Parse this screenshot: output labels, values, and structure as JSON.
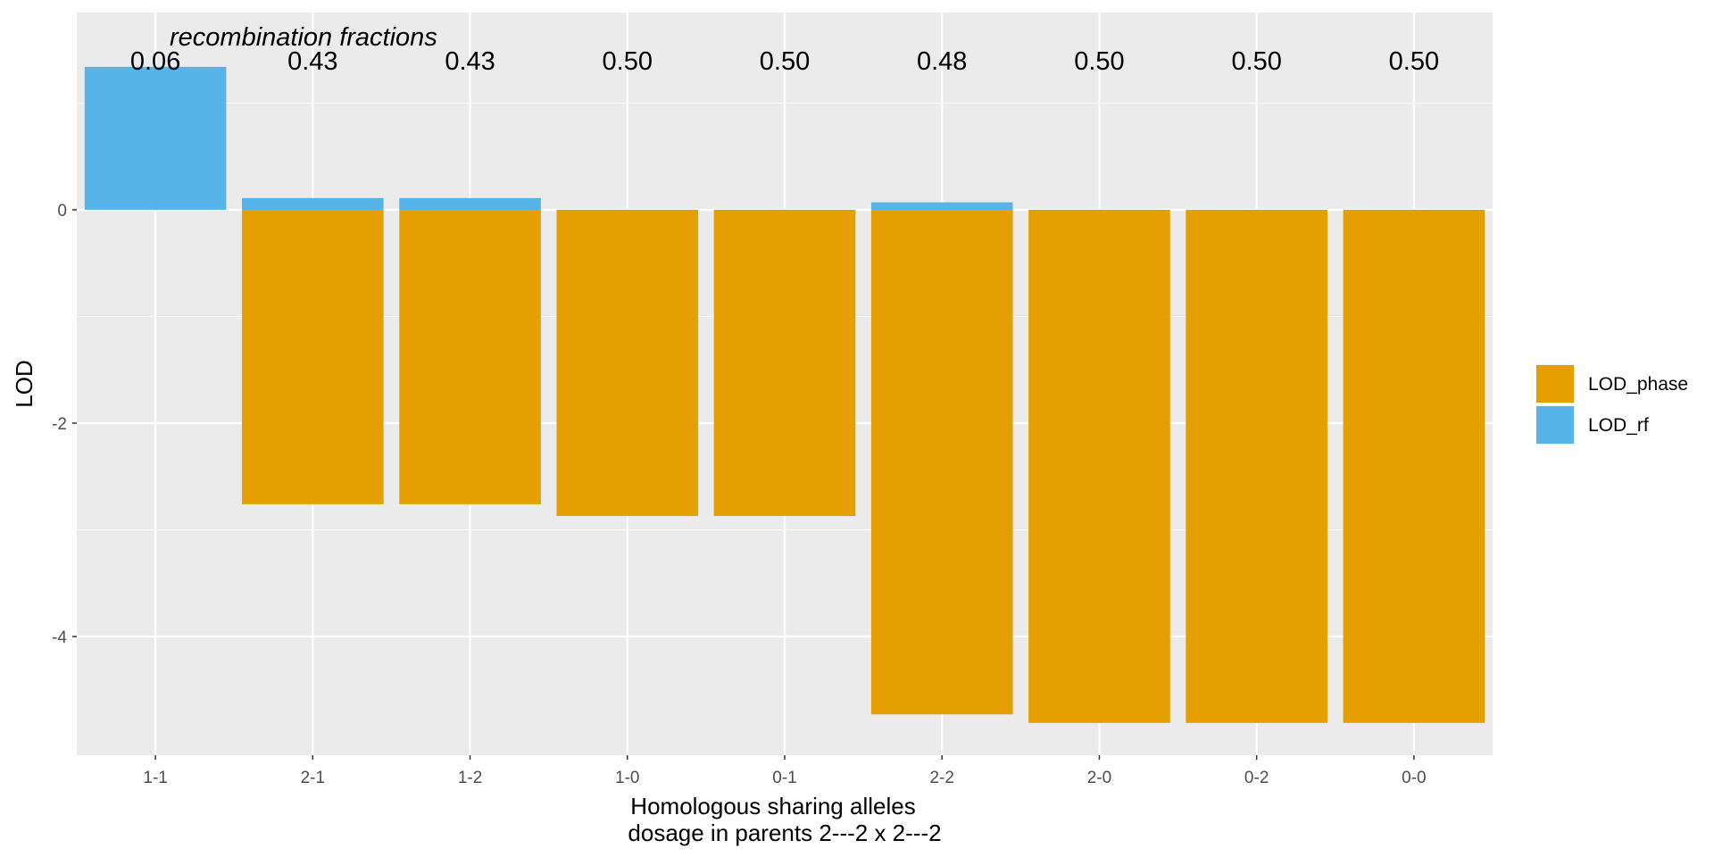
{
  "chart_data": {
    "type": "bar",
    "stacked": true,
    "categories": [
      "1-1",
      "2-1",
      "1-2",
      "1-0",
      "0-1",
      "2-2",
      "2-0",
      "0-2",
      "0-0"
    ],
    "series": [
      {
        "name": "LOD_phase",
        "color": "#E69F00",
        "values": [
          0,
          -2.76,
          -2.76,
          -2.87,
          -2.87,
          -4.73,
          -4.81,
          -4.81,
          -4.81
        ]
      },
      {
        "name": "LOD_rf",
        "color": "#56B4E9",
        "values": [
          1.34,
          0.11,
          0.11,
          0,
          0,
          0.07,
          0,
          0,
          0
        ]
      }
    ],
    "rf_labels": [
      "0.06",
      "0.43",
      "0.43",
      "0.50",
      "0.50",
      "0.48",
      "0.50",
      "0.50",
      "0.50"
    ],
    "annotation": "recombination fractions",
    "xlabel_line1": "Homologous sharing alleles",
    "xlabel_line2": "dosage in parents  2---2  x  2---2",
    "ylabel": "LOD",
    "yticks": [
      0,
      -2,
      -4
    ],
    "ytick_labels": [
      "0",
      "-2",
      "-4"
    ],
    "ylim": [
      -5.13,
      1.85
    ],
    "grid": true,
    "legend_position": "right",
    "legend_order": [
      "LOD_phase",
      "LOD_rf"
    ],
    "panel_background": "#EBEBEB"
  }
}
